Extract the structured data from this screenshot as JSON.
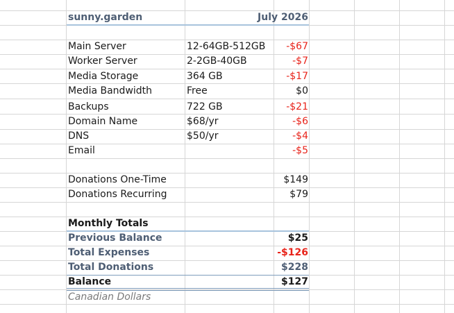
{
  "header": {
    "org": "sunny.garden",
    "period": "July 2026"
  },
  "expenses": [
    {
      "label": "Main Server",
      "spec": "12-64GB-512GB",
      "amount": "-$67"
    },
    {
      "label": "Worker Server",
      "spec": "2-2GB-40GB",
      "amount": "-$7"
    },
    {
      "label": "Media Storage",
      "spec": "364 GB",
      "amount": "-$17"
    },
    {
      "label": "Media Bandwidth",
      "spec": "Free",
      "amount": "$0"
    },
    {
      "label": "Backups",
      "spec": "722 GB",
      "amount": "-$21"
    },
    {
      "label": "Domain Name",
      "spec": "$68/yr",
      "amount": "-$6"
    },
    {
      "label": "DNS",
      "spec": "$50/yr",
      "amount": "-$4"
    },
    {
      "label": "Email",
      "spec": "",
      "amount": "-$5"
    }
  ],
  "donations": [
    {
      "label": "Donations One-Time",
      "amount": "$149"
    },
    {
      "label": "Donations Recurring",
      "amount": "$79"
    }
  ],
  "totals": {
    "heading": "Monthly Totals",
    "previous_balance": {
      "label": "Previous Balance",
      "amount": "$25"
    },
    "total_expenses": {
      "label": "Total Expenses",
      "amount": "-$126"
    },
    "total_donations": {
      "label": "Total Donations",
      "amount": "$228"
    },
    "balance": {
      "label": "Balance",
      "amount": "$127"
    }
  },
  "footnote": "Canadian Dollars",
  "colors": {
    "negative": "#e8231a",
    "slate": "#4e5e74",
    "rule": "#a7c3dd",
    "grid": "#d6d6d6"
  }
}
